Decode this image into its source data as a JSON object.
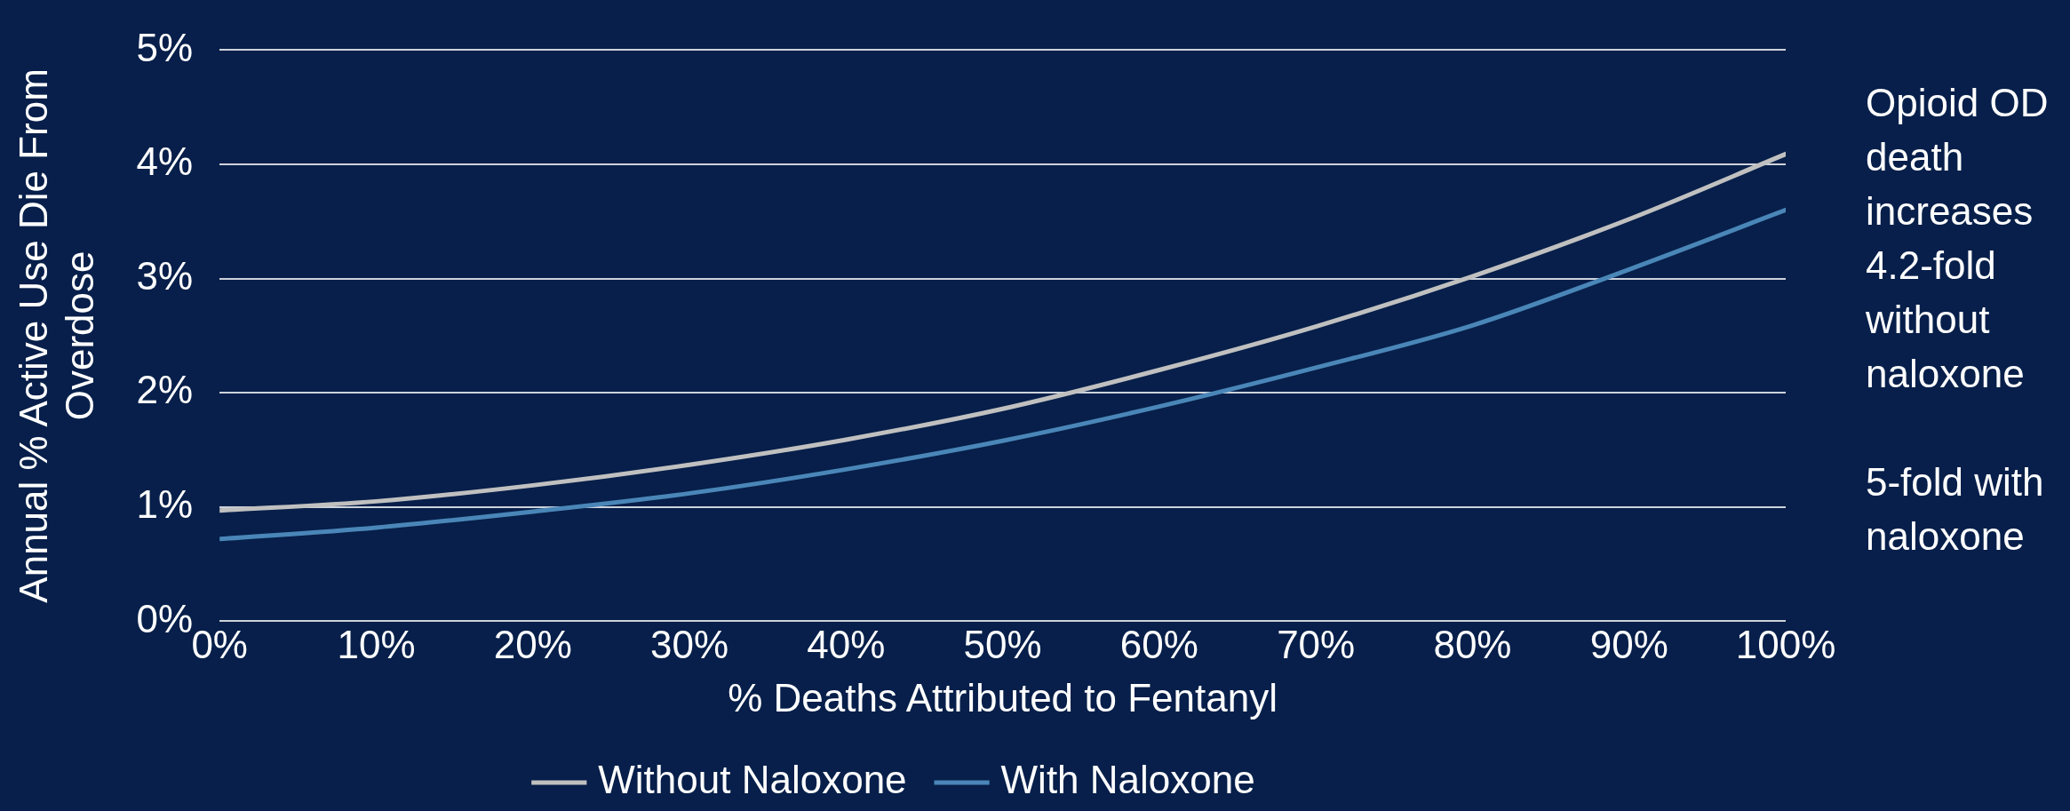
{
  "chart_data": {
    "type": "line",
    "xlabel": "% Deaths Attributed to Fentanyl",
    "ylabel": "Annual % Active Use Die From Overdose",
    "x": [
      0,
      10,
      20,
      30,
      40,
      50,
      60,
      70,
      80,
      90,
      100
    ],
    "series": [
      {
        "name": "Without Naloxone",
        "color": "#c0c0c0",
        "values": [
          0.97,
          1.05,
          1.19,
          1.37,
          1.59,
          1.86,
          2.2,
          2.58,
          3.02,
          3.52,
          4.09
        ]
      },
      {
        "name": "With Naloxone",
        "color": "#4a86b8",
        "values": [
          0.72,
          0.82,
          0.96,
          1.12,
          1.33,
          1.58,
          1.88,
          2.22,
          2.59,
          3.08,
          3.6
        ]
      }
    ],
    "xlim": [
      0,
      100
    ],
    "xticks": [
      {
        "value": 0,
        "label": "0%"
      },
      {
        "value": 10,
        "label": "10%"
      },
      {
        "value": 20,
        "label": "20%"
      },
      {
        "value": 30,
        "label": "30%"
      },
      {
        "value": 40,
        "label": "40%"
      },
      {
        "value": 50,
        "label": "50%"
      },
      {
        "value": 60,
        "label": "60%"
      },
      {
        "value": 70,
        "label": "70%"
      },
      {
        "value": 80,
        "label": "80%"
      },
      {
        "value": 90,
        "label": "90%"
      },
      {
        "value": 100,
        "label": "100%"
      }
    ],
    "ylim": [
      0,
      5
    ],
    "yticks": [
      {
        "value": 0,
        "label": "0%"
      },
      {
        "value": 1,
        "label": "1%"
      },
      {
        "value": 2,
        "label": "2%"
      },
      {
        "value": 3,
        "label": "3%"
      },
      {
        "value": 4,
        "label": "4%"
      },
      {
        "value": 5,
        "label": "5%"
      }
    ],
    "annotations": [
      "Opioid OD death increases 4.2-fold without naloxone",
      "5-fold with naloxone"
    ],
    "grid": "y",
    "legend": "bottom",
    "marker": "none",
    "line_style": "solid"
  }
}
